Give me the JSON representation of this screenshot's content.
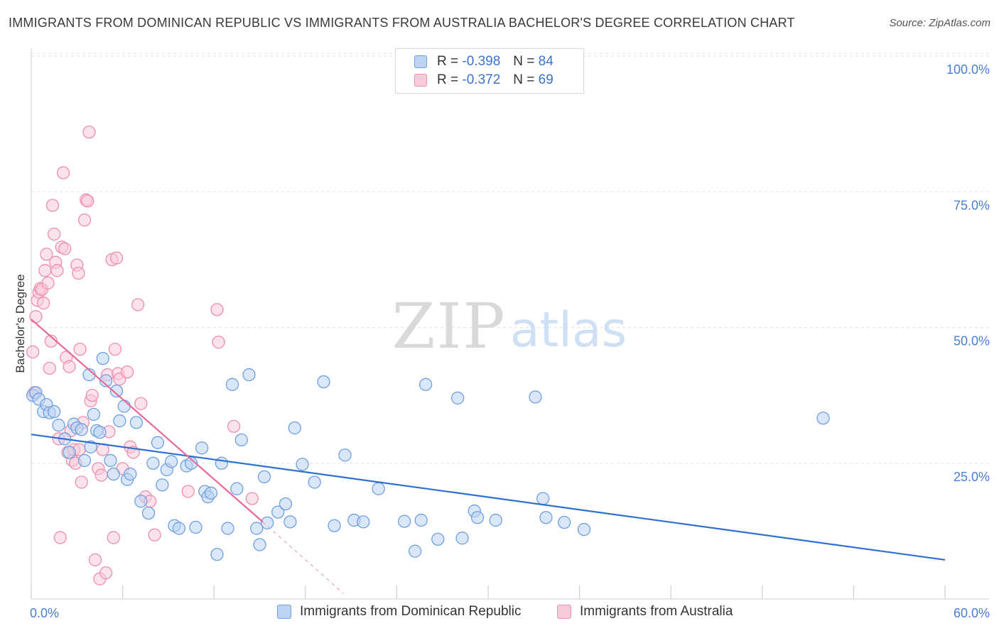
{
  "header": {
    "title": "IMMIGRANTS FROM DOMINICAN REPUBLIC VS IMMIGRANTS FROM AUSTRALIA BACHELOR'S DEGREE CORRELATION CHART",
    "source": "Source: ZipAtlas.com"
  },
  "watermark": {
    "zip": "ZIP",
    "atlas": "atlas"
  },
  "legend": {
    "r_label": "R =",
    "n_label": "N =",
    "rows": [
      {
        "r": "-0.398",
        "n": "84"
      },
      {
        "r": "-0.372",
        "n": "69"
      }
    ]
  },
  "chart_data": {
    "type": "scatter",
    "title": "IMMIGRANTS FROM DOMINICAN REPUBLIC VS IMMIGRANTS FROM AUSTRALIA BACHELOR'S DEGREE CORRELATION CHART",
    "xlabel": "",
    "ylabel": "Bachelor's Degree",
    "xlim": [
      0,
      60
    ],
    "ylim": [
      0,
      100
    ],
    "x_tick_labels": [
      "0.0%",
      "60.0%"
    ],
    "y_ticks": [
      25,
      50,
      75,
      100
    ],
    "y_tick_labels": [
      "25.0%",
      "50.0%",
      "75.0%",
      "100.0%"
    ],
    "grid": true,
    "legend_position": "top-center",
    "series": [
      {
        "name": "Immigrants from Dominican Republic",
        "color": "#6fa0e0",
        "fill": "#bcd3f2",
        "R": -0.398,
        "N": 84,
        "trend": {
          "x": [
            0,
            60
          ],
          "y": [
            30.3,
            7.2
          ],
          "color": "#2f6fd0"
        },
        "points": [
          [
            0.1,
            37.5
          ],
          [
            0.3,
            38
          ],
          [
            0.5,
            36.8
          ],
          [
            0.8,
            34.5
          ],
          [
            1.0,
            35.8
          ],
          [
            1.2,
            34.3
          ],
          [
            1.5,
            34.5
          ],
          [
            1.8,
            32
          ],
          [
            2.2,
            29.5
          ],
          [
            2.5,
            27
          ],
          [
            2.8,
            32.2
          ],
          [
            3.0,
            31.5
          ],
          [
            3.3,
            31.2
          ],
          [
            3.5,
            25.5
          ],
          [
            3.8,
            41.3
          ],
          [
            3.9,
            28
          ],
          [
            4.1,
            34
          ],
          [
            4.3,
            31
          ],
          [
            4.5,
            30.7
          ],
          [
            4.7,
            44.3
          ],
          [
            4.9,
            40.2
          ],
          [
            5.2,
            25.5
          ],
          [
            5.4,
            23
          ],
          [
            5.6,
            38.3
          ],
          [
            5.8,
            32.8
          ],
          [
            6.1,
            35.5
          ],
          [
            6.3,
            22
          ],
          [
            6.5,
            23
          ],
          [
            6.9,
            32.5
          ],
          [
            7.2,
            18
          ],
          [
            7.7,
            15.8
          ],
          [
            8.0,
            25
          ],
          [
            8.3,
            28.8
          ],
          [
            8.6,
            21
          ],
          [
            8.9,
            23.8
          ],
          [
            9.2,
            25.3
          ],
          [
            9.4,
            13.5
          ],
          [
            9.7,
            13
          ],
          [
            10.2,
            24.5
          ],
          [
            10.5,
            25
          ],
          [
            10.8,
            13.2
          ],
          [
            11.2,
            27.8
          ],
          [
            11.4,
            19.8
          ],
          [
            11.6,
            18.8
          ],
          [
            11.8,
            19.5
          ],
          [
            12.2,
            8.2
          ],
          [
            12.5,
            25
          ],
          [
            12.9,
            13
          ],
          [
            13.2,
            39.5
          ],
          [
            13.5,
            20.3
          ],
          [
            13.8,
            29.3
          ],
          [
            14.3,
            41.3
          ],
          [
            14.8,
            13
          ],
          [
            15.0,
            10
          ],
          [
            15.3,
            22.5
          ],
          [
            15.5,
            14
          ],
          [
            16.2,
            16
          ],
          [
            16.7,
            17.5
          ],
          [
            17.0,
            14.2
          ],
          [
            17.3,
            31.5
          ],
          [
            17.8,
            24.8
          ],
          [
            18.6,
            21.5
          ],
          [
            19.2,
            40
          ],
          [
            19.9,
            13.5
          ],
          [
            20.6,
            26.5
          ],
          [
            21.2,
            14.5
          ],
          [
            21.8,
            14.2
          ],
          [
            22.8,
            20.3
          ],
          [
            24.5,
            14.3
          ],
          [
            25.2,
            8.8
          ],
          [
            25.6,
            14.5
          ],
          [
            25.9,
            39.5
          ],
          [
            26.7,
            11
          ],
          [
            28.0,
            37
          ],
          [
            28.3,
            11.2
          ],
          [
            29.1,
            16.2
          ],
          [
            29.3,
            15
          ],
          [
            30.5,
            14.5
          ],
          [
            33.1,
            37.2
          ],
          [
            33.6,
            18.5
          ],
          [
            33.8,
            15
          ],
          [
            35.0,
            14.1
          ],
          [
            36.3,
            12.8
          ],
          [
            52.0,
            33.3
          ]
        ]
      },
      {
        "name": "Immigrants from Australia",
        "color": "#ee8fae",
        "fill": "#f9cad9",
        "R": -0.372,
        "N": 69,
        "trend": {
          "x": [
            0,
            15.2
          ],
          "y": [
            51.5,
            14.2
          ],
          "color": "#e8689a"
        },
        "trend_extension": {
          "x": [
            15.2,
            20.5
          ],
          "y": [
            14.2,
            1.0
          ]
        },
        "points": [
          [
            0.1,
            45.5
          ],
          [
            0.2,
            38
          ],
          [
            0.3,
            52
          ],
          [
            0.4,
            55
          ],
          [
            0.5,
            56.5
          ],
          [
            0.6,
            57.2
          ],
          [
            0.7,
            57
          ],
          [
            0.8,
            54.5
          ],
          [
            0.9,
            60.5
          ],
          [
            1.0,
            63.5
          ],
          [
            1.1,
            58.2
          ],
          [
            1.2,
            42.5
          ],
          [
            1.3,
            47.5
          ],
          [
            1.4,
            72.5
          ],
          [
            1.5,
            67.2
          ],
          [
            1.6,
            62
          ],
          [
            1.7,
            60.5
          ],
          [
            1.8,
            29.5
          ],
          [
            1.9,
            11.3
          ],
          [
            2.0,
            64.8
          ],
          [
            2.1,
            78.5
          ],
          [
            2.2,
            64.5
          ],
          [
            2.3,
            44.5
          ],
          [
            2.4,
            27
          ],
          [
            2.5,
            42.8
          ],
          [
            2.6,
            31
          ],
          [
            2.7,
            25.5
          ],
          [
            2.8,
            27.5
          ],
          [
            2.9,
            25
          ],
          [
            3.0,
            61.5
          ],
          [
            3.1,
            60
          ],
          [
            3.15,
            27.5
          ],
          [
            3.2,
            46
          ],
          [
            3.3,
            21.5
          ],
          [
            3.4,
            32.5
          ],
          [
            3.5,
            69.8
          ],
          [
            3.6,
            73.5
          ],
          [
            3.7,
            73.3
          ],
          [
            3.8,
            86
          ],
          [
            3.9,
            36.5
          ],
          [
            4.0,
            37.5
          ],
          [
            4.2,
            7.2
          ],
          [
            4.4,
            24
          ],
          [
            4.5,
            3.7
          ],
          [
            4.6,
            22.8
          ],
          [
            4.7,
            27.5
          ],
          [
            4.9,
            4.8
          ],
          [
            5.0,
            41.3
          ],
          [
            5.1,
            30.8
          ],
          [
            5.3,
            62.5
          ],
          [
            5.4,
            11.3
          ],
          [
            5.5,
            46
          ],
          [
            5.6,
            62.8
          ],
          [
            5.7,
            41.5
          ],
          [
            5.8,
            40.5
          ],
          [
            6.0,
            24
          ],
          [
            6.3,
            41.8
          ],
          [
            6.5,
            28
          ],
          [
            6.7,
            27
          ],
          [
            7.0,
            54.2
          ],
          [
            7.2,
            36
          ],
          [
            7.5,
            18.8
          ],
          [
            7.8,
            18
          ],
          [
            8.1,
            11.8
          ],
          [
            10.3,
            19.8
          ],
          [
            12.2,
            53.3
          ],
          [
            12.3,
            47.3
          ],
          [
            13.3,
            31.8
          ],
          [
            14.5,
            18.5
          ]
        ]
      }
    ]
  }
}
